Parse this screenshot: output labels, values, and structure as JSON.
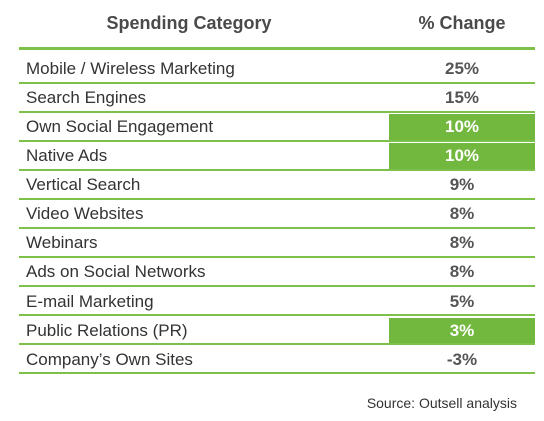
{
  "chart_data": {
    "type": "table",
    "columns": [
      "Spending Category",
      "% Change"
    ],
    "rows": [
      {
        "category": "Mobile / Wireless Marketing",
        "change": "25%",
        "highlight": false
      },
      {
        "category": "Search Engines",
        "change": "15%",
        "highlight": false
      },
      {
        "category": "Own Social Engagement",
        "change": "10%",
        "highlight": true
      },
      {
        "category": "Native Ads",
        "change": "10%",
        "highlight": true
      },
      {
        "category": "Vertical Search",
        "change": "9%",
        "highlight": false
      },
      {
        "category": "Video Websites",
        "change": "8%",
        "highlight": false
      },
      {
        "category": "Webinars",
        "change": "8%",
        "highlight": false
      },
      {
        "category": "Ads on Social Networks",
        "change": "8%",
        "highlight": false
      },
      {
        "category": "E-mail Marketing",
        "change": "5%",
        "highlight": false
      },
      {
        "category": "Public Relations (PR)",
        "change": "3%",
        "highlight": true
      },
      {
        "category": "Company’s Own Sites",
        "change": "-3%",
        "highlight": false
      }
    ],
    "source": "Source: Outsell analysis",
    "highlight_color": "#72b83e",
    "rule_color": "#7dc04a"
  }
}
